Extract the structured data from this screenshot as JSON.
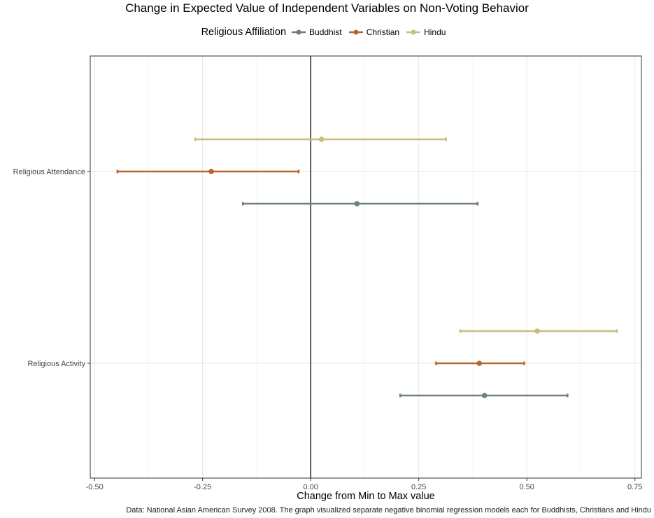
{
  "chart_data": {
    "type": "scatter",
    "title": "Change in Expected Value of Independent Variables on Non-Voting Behavior",
    "xlabel": "Change from Min to Max value",
    "ylabel": "",
    "caption": "Data: National Asian American Survey 2008. The graph visualized separate negative binomial regression models each for Buddhists, Christians and Hindu",
    "xlim": [
      -0.51,
      0.765
    ],
    "xticks": [
      -0.5,
      -0.25,
      0,
      0.25,
      0.5,
      0.75
    ],
    "xtick_labels": [
      "-0.50",
      "-0.25",
      "0.00",
      "0.25",
      "0.50",
      "0.75"
    ],
    "categories": [
      "Religious Attendance",
      "Religious Activity"
    ],
    "legend_title": "Religious Affiliation",
    "legend_position": "top",
    "grid": true,
    "reference_line_x": 0,
    "series": [
      {
        "name": "Buddhist",
        "color": "#6e8178",
        "points": [
          {
            "category": "Religious Attendance",
            "estimate": 0.107,
            "lower": -0.157,
            "upper": 0.386
          },
          {
            "category": "Religious Activity",
            "estimate": 0.402,
            "lower": 0.207,
            "upper": 0.594
          }
        ]
      },
      {
        "name": "Christian",
        "color": "#b8652b",
        "points": [
          {
            "category": "Religious Attendance",
            "estimate": -0.23,
            "lower": -0.447,
            "upper": -0.028
          },
          {
            "category": "Religious Activity",
            "estimate": 0.39,
            "lower": 0.29,
            "upper": 0.494
          }
        ]
      },
      {
        "name": "Hindu",
        "color": "#c7bd7e",
        "points": [
          {
            "category": "Religious Attendance",
            "estimate": 0.025,
            "lower": -0.267,
            "upper": 0.313
          },
          {
            "category": "Religious Activity",
            "estimate": 0.524,
            "lower": 0.346,
            "upper": 0.708
          }
        ]
      }
    ]
  }
}
